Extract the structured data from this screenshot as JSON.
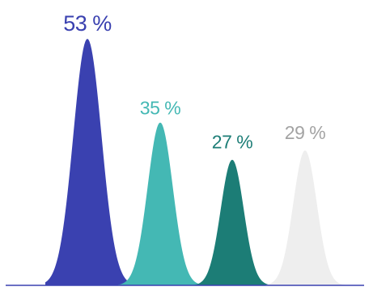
{
  "chart_data": {
    "type": "area",
    "title": "",
    "categories": [
      "",
      "",
      "",
      ""
    ],
    "series": [
      {
        "label": "53 %",
        "value": 53,
        "color": "#3a41b0"
      },
      {
        "label": "35 %",
        "value": 35,
        "color": "#44b8b4"
      },
      {
        "label": "27 %",
        "value": 27,
        "color": "#1c7d76"
      },
      {
        "label": "29 %",
        "value": 29,
        "color": "#eeeeee"
      }
    ],
    "label_colors": [
      "#3a41b0",
      "#44b8b4",
      "#1c7d76",
      "#a3a3a3"
    ],
    "ylim": [
      0,
      53
    ],
    "baseline_color": "#3a41b0",
    "grid": false,
    "legend": "none"
  }
}
